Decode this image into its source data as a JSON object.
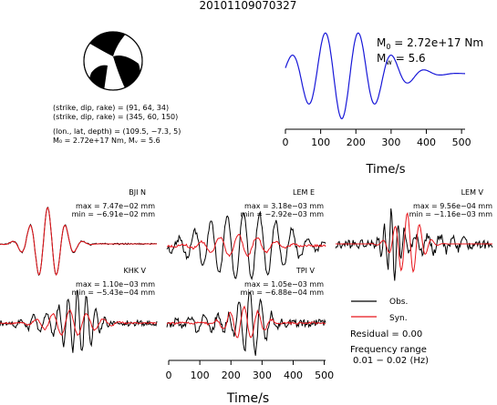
{
  "figure_title": "20101109070327",
  "colors": {
    "observed": "#000000",
    "synthetic": "#e8141a",
    "source_time_function": "#1818d8",
    "beachball": "#000000"
  },
  "mechanism": {
    "line1": "(strike, dip, rake) = (91, 64, 34)",
    "line2": "(strike, dip, rake) = (345, 60, 150)",
    "line3": "(lon., lat, depth) = (109.5, −7.3, 5)",
    "line4": "M₀ = 2.72e+17 Nm, Mᵥ = 5.6"
  },
  "moment": {
    "m0_label": "M",
    "m0_sub": "0",
    "m0_value": " = 2.72e+17 Nm",
    "mw_label": "M",
    "mw_sub": "w",
    "mw_value": " = 5.6"
  },
  "legend": {
    "obs": "Obs.",
    "syn": "Syn.",
    "residual": "Residual = 0.00",
    "freq_label": "Frequency range",
    "freq_value": "0.01 − 0.02 (Hz)"
  },
  "chart_data": [
    {
      "type": "line",
      "name": "source time function",
      "x_range": [
        0,
        510
      ],
      "xticks": [
        0,
        100,
        200,
        300,
        400,
        500
      ],
      "xlabel": "Time/s",
      "wave": {
        "amp": 0.95,
        "center": 160,
        "period": 95,
        "decay": 150
      }
    },
    {
      "type": "line",
      "station": "BJI N",
      "max": "max = 7.47e−02 mm",
      "min": "min = −6.91e−02 mm",
      "series": [
        {
          "role": "obs",
          "components": [
            [
              1.0,
              155,
              58,
              70,
              0
            ]
          ],
          "noise": 0.02
        },
        {
          "role": "syn",
          "components": [
            [
              1.0,
              155,
              58,
              70,
              0
            ]
          ],
          "noise": 0.0
        }
      ]
    },
    {
      "type": "line",
      "station": "LEM E",
      "max": "max = 3.18e−03 mm",
      "min": "min = −2.92e−03 mm",
      "series": [
        {
          "role": "obs",
          "components": [
            [
              0.95,
              250,
              52,
              170,
              0.5
            ]
          ],
          "noise": 0.08
        },
        {
          "role": "syn",
          "components": [
            [
              0.3,
              230,
              60,
              120,
              0
            ]
          ],
          "noise": 0.03
        }
      ]
    },
    {
      "type": "line",
      "station": "LEM V",
      "max": "max = 9.56e−04 mm",
      "min": "min = −1.16e−03 mm",
      "series": [
        {
          "role": "obs",
          "components": [
            [
              0.9,
              185,
              22,
              35,
              1.2
            ],
            [
              0.25,
              300,
              40,
              120,
              0
            ]
          ],
          "noise": 0.12
        },
        {
          "role": "syn",
          "components": [
            [
              0.85,
              235,
              40,
              55,
              0.3
            ]
          ],
          "noise": 0.0
        }
      ]
    },
    {
      "type": "line",
      "station": "KHK V",
      "max": "max = 1.10e−03 mm",
      "min": "min = −5.43e−04 mm",
      "series": [
        {
          "role": "obs",
          "components": [
            [
              0.9,
              255,
              30,
              60,
              0.8
            ],
            [
              0.25,
              150,
              40,
              80,
              0
            ]
          ],
          "noise": 0.08
        },
        {
          "role": "syn",
          "components": [
            [
              0.35,
              230,
              55,
              100,
              0.4
            ]
          ],
          "noise": 0.02
        }
      ]
    },
    {
      "type": "line",
      "station": "TPI V",
      "max": "max = 1.05e−03 mm",
      "min": "min = −6.88e−04 mm",
      "xlabel": "Time/s",
      "xticks": [
        0,
        100,
        200,
        300,
        400,
        500
      ],
      "x_range": [
        0,
        510
      ],
      "series": [
        {
          "role": "obs",
          "components": [
            [
              0.9,
              270,
              35,
              60,
              0.6
            ],
            [
              0.2,
              120,
              45,
              90,
              0
            ]
          ],
          "noise": 0.1
        },
        {
          "role": "syn",
          "components": [
            [
              0.45,
              250,
              45,
              70,
              0.3
            ]
          ],
          "noise": 0.03
        }
      ]
    }
  ]
}
